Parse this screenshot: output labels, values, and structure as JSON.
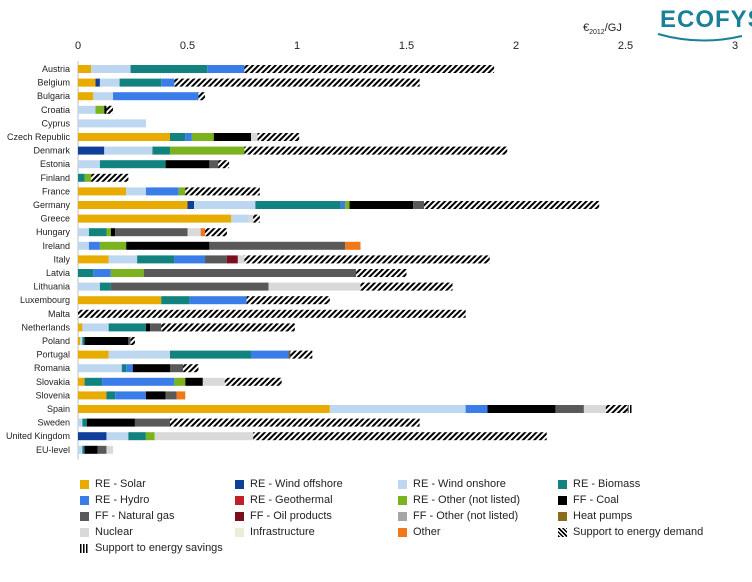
{
  "brand": {
    "logo_text": "ECOFYS",
    "accent": "#1a7f99"
  },
  "unit_label": {
    "main": "€",
    "sub": "2012",
    "tail": "/GJ"
  },
  "chart_data": {
    "type": "bar",
    "orientation": "horizontal",
    "stacked": true,
    "title": "",
    "xlabel": "",
    "ylabel": "",
    "xlim": [
      0,
      3
    ],
    "x_ticks": [
      "0",
      "0.5",
      "1",
      "1.5",
      "2",
      "2.5",
      "3"
    ],
    "x_tick_values": [
      0,
      0.5,
      1,
      1.5,
      2,
      2.5,
      3
    ],
    "grid": false,
    "legend_position": "bottom",
    "categories": [
      "Austria",
      "Belgium",
      "Bulgaria",
      "Croatia",
      "Cyprus",
      "Czech Republic",
      "Denmark",
      "Estonia",
      "Finland",
      "France",
      "Germany",
      "Greece",
      "Hungary",
      "Ireland",
      "Italy",
      "Latvia",
      "Lithuania",
      "Luxembourg",
      "Malta",
      "Netherlands",
      "Poland",
      "Portugal",
      "Romania",
      "Slovakia",
      "Slovenia",
      "Spain",
      "Sweden",
      "United Kingdom",
      "EU-level"
    ],
    "series": [
      {
        "name": "RE - Solar",
        "color": "#e8ac00",
        "pattern": "solid",
        "values": [
          0.06,
          0.08,
          0.07,
          0,
          0,
          0.42,
          0,
          0,
          0,
          0.22,
          0.5,
          0.7,
          0,
          0,
          0.14,
          0,
          0,
          0.38,
          0,
          0.02,
          0.01,
          0.14,
          0,
          0.03,
          0.13,
          1.15,
          0,
          0,
          0
        ]
      },
      {
        "name": "RE - Wind offshore",
        "color": "#0f3f99",
        "pattern": "solid",
        "values": [
          0,
          0.02,
          0,
          0,
          0,
          0,
          0.12,
          0,
          0,
          0,
          0.03,
          0,
          0,
          0,
          0,
          0,
          0,
          0,
          0,
          0,
          0,
          0,
          0,
          0,
          0,
          0,
          0,
          0.13,
          0
        ]
      },
      {
        "name": "RE - Wind onshore",
        "color": "#bdd7f0",
        "pattern": "solid",
        "values": [
          0.18,
          0.09,
          0.09,
          0.08,
          0.31,
          0,
          0.22,
          0.1,
          0,
          0.09,
          0.28,
          0.08,
          0.05,
          0.05,
          0.13,
          0,
          0.1,
          0,
          0,
          0.12,
          0.01,
          0.28,
          0.2,
          0,
          0,
          0.62,
          0.02,
          0.1,
          0.02
        ]
      },
      {
        "name": "RE - Biomass",
        "color": "#12827f",
        "pattern": "solid",
        "values": [
          0.35,
          0.19,
          0,
          0,
          0,
          0.07,
          0.08,
          0.3,
          0.03,
          0,
          0.39,
          0,
          0.08,
          0,
          0.17,
          0.07,
          0.05,
          0.13,
          0,
          0.17,
          0.01,
          0.37,
          0.02,
          0.08,
          0.04,
          0,
          0.02,
          0.08,
          0.01
        ]
      },
      {
        "name": "RE - Hydro",
        "color": "#3b7de8",
        "pattern": "solid",
        "values": [
          0.17,
          0.06,
          0.39,
          0,
          0,
          0.03,
          0,
          0,
          0,
          0.15,
          0.02,
          0,
          0,
          0.05,
          0.14,
          0.08,
          0,
          0.26,
          0,
          0,
          0,
          0.17,
          0.03,
          0.33,
          0.14,
          0.1,
          0,
          0,
          0
        ]
      },
      {
        "name": "RE - Geothermal",
        "color": "#c0202a",
        "pattern": "solid",
        "values": [
          0,
          0,
          0,
          0,
          0,
          0,
          0,
          0,
          0,
          0,
          0,
          0,
          0,
          0,
          0,
          0,
          0,
          0,
          0,
          0,
          0,
          0,
          0,
          0,
          0,
          0,
          0,
          0,
          0
        ]
      },
      {
        "name": "RE - Other (not listed)",
        "color": "#7ab31e",
        "pattern": "solid",
        "values": [
          0,
          0,
          0,
          0.04,
          0,
          0.1,
          0.34,
          0,
          0.03,
          0.03,
          0.02,
          0,
          0.02,
          0.12,
          0,
          0.15,
          0,
          0,
          0,
          0,
          0,
          0,
          0,
          0.05,
          0,
          0,
          0,
          0.04,
          0
        ]
      },
      {
        "name": "FF - Coal",
        "color": "#000000",
        "pattern": "solid",
        "values": [
          0,
          0,
          0,
          0.01,
          0,
          0.17,
          0,
          0.2,
          0,
          0,
          0.29,
          0,
          0.02,
          0.38,
          0,
          0,
          0,
          0,
          0,
          0.02,
          0.2,
          0,
          0.17,
          0.08,
          0.09,
          0.31,
          0.22,
          0,
          0.06
        ]
      },
      {
        "name": "FF - Natural gas",
        "color": "#595959",
        "pattern": "solid",
        "values": [
          0,
          0,
          0,
          0,
          0,
          0,
          0,
          0.04,
          0,
          0,
          0.05,
          0,
          0.33,
          0.62,
          0.1,
          0.97,
          0.72,
          0,
          0,
          0.05,
          0.01,
          0.01,
          0.06,
          0,
          0.05,
          0.13,
          0.16,
          0,
          0.04
        ]
      },
      {
        "name": "FF - Oil products",
        "color": "#7a0f1e",
        "pattern": "solid",
        "values": [
          0,
          0,
          0,
          0,
          0,
          0,
          0,
          0,
          0,
          0,
          0,
          0,
          0,
          0,
          0.05,
          0,
          0,
          0,
          0,
          0,
          0,
          0,
          0,
          0,
          0,
          0,
          0,
          0,
          0
        ]
      },
      {
        "name": "FF - Other (not listed)",
        "color": "#a6a6a6",
        "pattern": "solid",
        "values": [
          0,
          0,
          0,
          0,
          0,
          0,
          0,
          0,
          0,
          0,
          0,
          0,
          0,
          0,
          0,
          0,
          0,
          0,
          0,
          0,
          0,
          0,
          0,
          0,
          0,
          0,
          0,
          0,
          0
        ]
      },
      {
        "name": "Heat pumps",
        "color": "#8a6d1a",
        "pattern": "solid",
        "values": [
          0,
          0,
          0,
          0,
          0,
          0,
          0,
          0,
          0,
          0,
          0,
          0,
          0,
          0,
          0,
          0,
          0,
          0,
          0,
          0,
          0,
          0,
          0,
          0,
          0,
          0,
          0,
          0,
          0
        ]
      },
      {
        "name": "Nuclear",
        "color": "#d9d9d9",
        "pattern": "solid",
        "values": [
          0,
          0,
          0,
          0,
          0,
          0.03,
          0,
          0,
          0,
          0,
          0,
          0.02,
          0.06,
          0,
          0.03,
          0,
          0.42,
          0,
          0,
          0,
          0,
          0,
          0,
          0.1,
          0,
          0.1,
          0,
          0.45,
          0.03
        ]
      },
      {
        "name": "Infrastructure",
        "color": "#e9efd6",
        "pattern": "solid",
        "values": [
          0,
          0,
          0,
          0,
          0,
          0,
          0,
          0,
          0,
          0,
          0,
          0,
          0,
          0,
          0,
          0,
          0,
          0,
          0,
          0,
          0,
          0,
          0,
          0,
          0,
          0,
          0,
          0,
          0
        ]
      },
      {
        "name": "Other",
        "color": "#f07818",
        "pattern": "solid",
        "values": [
          0,
          0,
          0,
          0,
          0,
          0,
          0,
          0,
          0,
          0,
          0,
          0,
          0.02,
          0.07,
          0,
          0,
          0,
          0,
          0,
          0,
          0,
          0,
          0,
          0,
          0.04,
          0,
          0,
          0,
          0
        ]
      },
      {
        "name": "Support to energy demand",
        "color": "#000000",
        "pattern": "diagonal",
        "values": [
          1.14,
          1.12,
          0.03,
          0.03,
          0,
          0.19,
          1.2,
          0.05,
          0.17,
          0.34,
          0.8,
          0.03,
          0.1,
          0,
          1.12,
          0.23,
          0.42,
          0.38,
          1.77,
          0.61,
          0.02,
          0.1,
          0.07,
          0.26,
          0,
          0.1,
          1.14,
          1.34,
          0
        ]
      },
      {
        "name": "Support to energy savings",
        "color": "#000000",
        "pattern": "vertical",
        "values": [
          0,
          0,
          0,
          0,
          0,
          0,
          0,
          0,
          0,
          0,
          0,
          0,
          0,
          0,
          0,
          0,
          0,
          0,
          0,
          0,
          0,
          0,
          0,
          0,
          0,
          0.02,
          0,
          0,
          0
        ]
      }
    ]
  }
}
